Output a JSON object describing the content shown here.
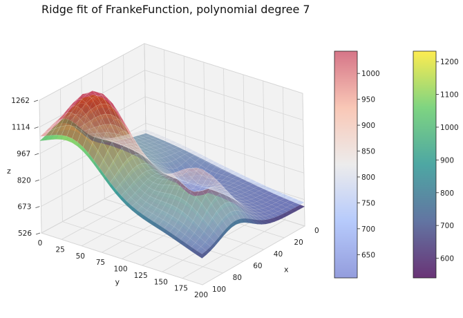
{
  "chart_data": {
    "type": "surface3d",
    "title": "Ridge fit of FrankeFunction, polynomial degree 7",
    "xlabel": "x",
    "ylabel": "y",
    "zlabel": "z",
    "x_ticks": [
      "0",
      "20",
      "40",
      "60",
      "80",
      "100"
    ],
    "y_ticks": [
      "0",
      "25",
      "50",
      "75",
      "100",
      "125",
      "150",
      "175",
      "200"
    ],
    "z_ticks": [
      "526",
      "673",
      "820",
      "967",
      "1114",
      "1262"
    ],
    "xlim": [
      0,
      100
    ],
    "ylim": [
      0,
      200
    ],
    "zlim": [
      526,
      1262
    ],
    "grid": true,
    "series": [
      {
        "colormap": "coolwarm",
        "colorbar_ticks": [
          "650",
          "700",
          "750",
          "800",
          "850",
          "900",
          "950",
          "1000"
        ],
        "colorbar_range": [
          605,
          1043
        ]
      },
      {
        "colormap": "viridis",
        "colorbar_ticks": [
          "600",
          "700",
          "800",
          "900",
          "1000",
          "1100",
          "1200"
        ],
        "colorbar_range": [
          540,
          1232
        ]
      }
    ]
  }
}
